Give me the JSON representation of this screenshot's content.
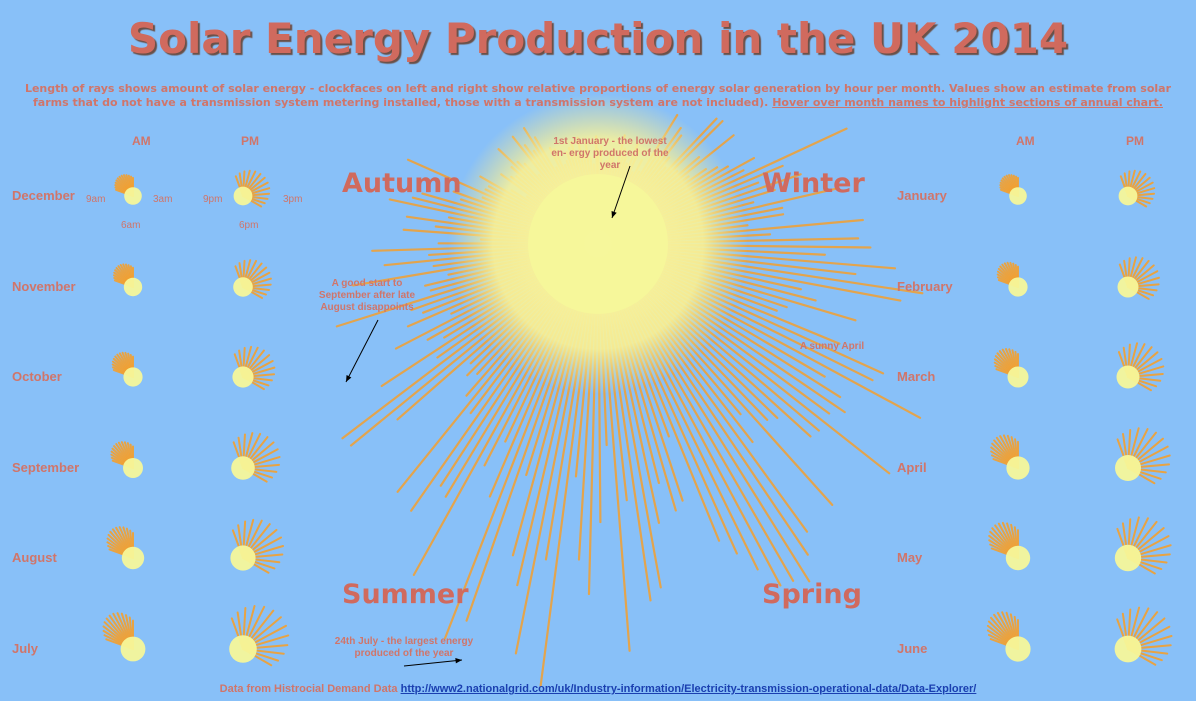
{
  "title": "Solar Energy Production in the UK 2014",
  "subtitle": "Length of rays shows amount of solar energy - clockfaces on left and right show relative proportions of energy solar generation by hour per month. Values show an estimate from solar farms that do not have a transmission system metering installed, those with a transmission system are not included).",
  "subtitle_hover": "Hover over month names to highlight sections of annual chart.",
  "seasons": {
    "autumn": "Autumn",
    "winter": "Winter",
    "summer": "Summer",
    "spring": "Spring"
  },
  "clock_headers": {
    "am": "AM",
    "pm": "PM"
  },
  "clock_labels": {
    "am_9": "9am",
    "am_3": "3am",
    "am_6": "6am",
    "pm_9": "9pm",
    "pm_3": "3pm",
    "pm_6": "6pm"
  },
  "annotations": {
    "jan1": "1st January - the lowest en- ergy produced of the year",
    "september": "A good start to September after late August disappoints",
    "april": "A sunny April",
    "july24": "24th July - the largest energy produced of the year"
  },
  "footer": {
    "label": "Data from Histrocial Demand Data",
    "link": "http://www2.nationalgrid.com/uk/Industry-information/Electricity-transmission-operational-data/Data-Explorer/"
  },
  "colors": {
    "background": "#88c0f8",
    "text": "#d06a5e",
    "ray_outer": "#f3a030",
    "ray_inner": "#f6f79a"
  },
  "chart_data": {
    "type": "radial",
    "title": "Solar Energy Production in the UK 2014",
    "months": [
      "January",
      "February",
      "March",
      "April",
      "May",
      "June",
      "July",
      "August",
      "September",
      "October",
      "November",
      "December"
    ],
    "monthly_relative_energy": [
      0.18,
      0.32,
      0.55,
      0.78,
      0.85,
      0.88,
      0.95,
      0.72,
      0.62,
      0.42,
      0.24,
      0.16
    ],
    "left_months": [
      "December",
      "November",
      "October",
      "September",
      "August",
      "July"
    ],
    "right_months": [
      "January",
      "February",
      "March",
      "April",
      "May",
      "June"
    ],
    "clockfaces": {
      "January": {
        "am": 0.28,
        "pm": 0.34
      },
      "February": {
        "am": 0.36,
        "pm": 0.45
      },
      "March": {
        "am": 0.45,
        "pm": 0.55
      },
      "April": {
        "am": 0.56,
        "pm": 0.7
      },
      "May": {
        "am": 0.62,
        "pm": 0.72
      },
      "June": {
        "am": 0.66,
        "pm": 0.74
      },
      "July": {
        "am": 0.64,
        "pm": 0.78
      },
      "August": {
        "am": 0.52,
        "pm": 0.66
      },
      "September": {
        "am": 0.4,
        "pm": 0.58
      },
      "October": {
        "am": 0.36,
        "pm": 0.46
      },
      "November": {
        "am": 0.32,
        "pm": 0.38
      },
      "December": {
        "am": 0.28,
        "pm": 0.34
      }
    }
  }
}
